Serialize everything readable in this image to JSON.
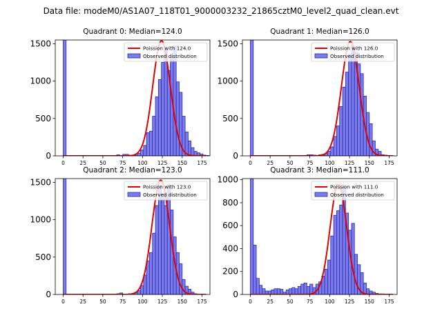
{
  "suptitle": "Data file: modeM0/AS1A07_118T01_9000003232_21865cztM0_level2_quad_clean.evt",
  "colors": {
    "hist_fill": "#7b7bea",
    "hist_edge": "#2b2bb0",
    "poisson_line": "#e00000"
  },
  "chart_data": [
    {
      "type": "bar",
      "title": "Quadrant 0: Median=124.0",
      "xlim": [
        -10,
        185
      ],
      "ylim": [
        0,
        1550
      ],
      "xticks": [
        0,
        25,
        50,
        75,
        100,
        125,
        150,
        175
      ],
      "yticks": [
        0,
        500,
        1000,
        1500
      ],
      "bin_width": 3.75,
      "bins_start": 0,
      "values": [
        1550,
        0,
        0,
        0,
        0,
        0,
        0,
        0,
        0,
        0,
        0,
        0,
        0,
        0,
        0,
        0,
        0,
        0,
        15,
        5,
        20,
        20,
        10,
        5,
        10,
        35,
        80,
        140,
        310,
        330,
        530,
        790,
        1020,
        1250,
        1420,
        1140,
        1320,
        1470,
        990,
        850,
        530,
        320,
        200,
        110,
        60,
        40,
        25,
        10,
        5,
        0
      ],
      "series": [
        {
          "name": "Poission with 124.0",
          "kind": "line"
        },
        {
          "name": "Observed distribution",
          "kind": "bar"
        }
      ],
      "poisson_mean": 124.0,
      "poisson_peak": 1540,
      "legend": "upper-right"
    },
    {
      "type": "bar",
      "title": "Quadrant 1: Median=126.0",
      "xlim": [
        -10,
        185
      ],
      "ylim": [
        0,
        1550
      ],
      "xticks": [
        0,
        25,
        50,
        75,
        100,
        125,
        150,
        175
      ],
      "yticks": [
        0,
        500,
        1000,
        1500
      ],
      "bin_width": 3.75,
      "bins_start": 0,
      "values": [
        1550,
        0,
        0,
        0,
        0,
        0,
        0,
        0,
        0,
        0,
        0,
        0,
        0,
        0,
        0,
        0,
        0,
        0,
        0,
        15,
        15,
        10,
        5,
        15,
        20,
        30,
        60,
        120,
        260,
        400,
        660,
        920,
        1120,
        1360,
        1470,
        1380,
        1230,
        1100,
        800,
        580,
        430,
        200,
        90,
        60,
        15,
        10,
        5,
        0
      ],
      "series": [
        {
          "name": "Poission with 126.0",
          "kind": "line"
        },
        {
          "name": "Observed distribution",
          "kind": "bar"
        }
      ],
      "poisson_mean": 126.0,
      "poisson_peak": 1530,
      "legend": "upper-right"
    },
    {
      "type": "bar",
      "title": "Quadrant 2: Median=123.0",
      "xlim": [
        -10,
        185
      ],
      "ylim": [
        0,
        1550
      ],
      "xticks": [
        0,
        25,
        50,
        75,
        100,
        125,
        150,
        175
      ],
      "yticks": [
        0,
        500,
        1000,
        1500
      ],
      "bin_width": 3.75,
      "bins_start": 0,
      "values": [
        1550,
        0,
        0,
        0,
        0,
        0,
        0,
        0,
        0,
        0,
        0,
        0,
        0,
        0,
        0,
        0,
        0,
        0,
        10,
        20,
        5,
        5,
        10,
        15,
        30,
        50,
        120,
        260,
        450,
        560,
        820,
        1190,
        1460,
        1350,
        1190,
        1460,
        1130,
        770,
        560,
        410,
        200,
        110,
        70,
        30,
        10,
        5,
        0
      ],
      "series": [
        {
          "name": "Poission with 123.0",
          "kind": "line"
        },
        {
          "name": "Observed distribution",
          "kind": "bar"
        }
      ],
      "poisson_mean": 123.0,
      "poisson_peak": 1530,
      "legend": "upper-right"
    },
    {
      "type": "bar",
      "title": "Quadrant 3: Median=111.0",
      "xlim": [
        -10,
        185
      ],
      "ylim": [
        0,
        1010
      ],
      "xticks": [
        0,
        25,
        50,
        75,
        100,
        125,
        150,
        175
      ],
      "yticks": [
        0,
        200,
        400,
        600,
        800,
        1000
      ],
      "bin_width": 3.75,
      "bins_start": 0,
      "values": [
        1010,
        430,
        140,
        80,
        50,
        30,
        30,
        40,
        50,
        50,
        45,
        20,
        40,
        50,
        60,
        50,
        70,
        90,
        100,
        70,
        90,
        60,
        90,
        110,
        160,
        220,
        300,
        510,
        690,
        730,
        780,
        940,
        710,
        560,
        620,
        350,
        260,
        190,
        100,
        50,
        30,
        20,
        10,
        5,
        5,
        0
      ],
      "series": [
        {
          "name": "Poission with 111.0",
          "kind": "line"
        },
        {
          "name": "Observed distribution",
          "kind": "bar"
        }
      ],
      "poisson_mean": 111.0,
      "poisson_peak": 960,
      "legend": "upper-right"
    }
  ]
}
